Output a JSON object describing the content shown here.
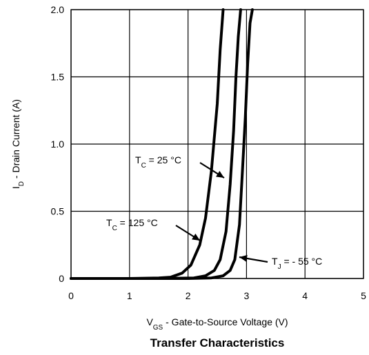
{
  "chart_data": {
    "type": "line",
    "title": "Transfer Characteristics",
    "xlabel": {
      "main": "V",
      "sub": "GS",
      "rest": " - Gate-to-Source Voltage (V)"
    },
    "ylabel": {
      "main": "I",
      "sub": "D",
      "rest": " - Drain Current (A)"
    },
    "xlim": [
      0,
      5
    ],
    "ylim": [
      0,
      2.0
    ],
    "xticks": [
      "0",
      "1",
      "2",
      "3",
      "4",
      "5"
    ],
    "yticks": [
      "0",
      "0.5",
      "1.0",
      "1.5",
      "2.0"
    ],
    "grid": true,
    "series": [
      {
        "name": "TC = 125 °C",
        "label": {
          "main": "T",
          "sub": "C",
          "rest": " = 125 °C"
        },
        "x": [
          0,
          1.0,
          1.5,
          1.7,
          1.9,
          2.05,
          2.2,
          2.3,
          2.4,
          2.5,
          2.55,
          2.6
        ],
        "y": [
          0,
          0,
          0.004,
          0.01,
          0.04,
          0.1,
          0.25,
          0.45,
          0.8,
          1.3,
          1.7,
          2.0
        ]
      },
      {
        "name": "TC = 25 °C",
        "label": {
          "main": "T",
          "sub": "C",
          "rest": " = 25 °C"
        },
        "x": [
          0,
          1.5,
          2.1,
          2.3,
          2.45,
          2.55,
          2.65,
          2.72,
          2.78,
          2.82,
          2.86,
          2.9
        ],
        "y": [
          0,
          0,
          0.004,
          0.02,
          0.06,
          0.14,
          0.35,
          0.7,
          1.1,
          1.5,
          1.8,
          2.0
        ]
      },
      {
        "name": "TJ = - 55 °C",
        "label": {
          "main": "T",
          "sub": "J",
          "rest": " = - 55 °C"
        },
        "x": [
          0,
          2.0,
          2.4,
          2.6,
          2.72,
          2.8,
          2.88,
          2.93,
          2.98,
          3.02,
          3.06,
          3.1
        ],
        "y": [
          0,
          0,
          0.004,
          0.02,
          0.06,
          0.14,
          0.4,
          0.8,
          1.2,
          1.6,
          1.9,
          2.0
        ]
      }
    ]
  }
}
